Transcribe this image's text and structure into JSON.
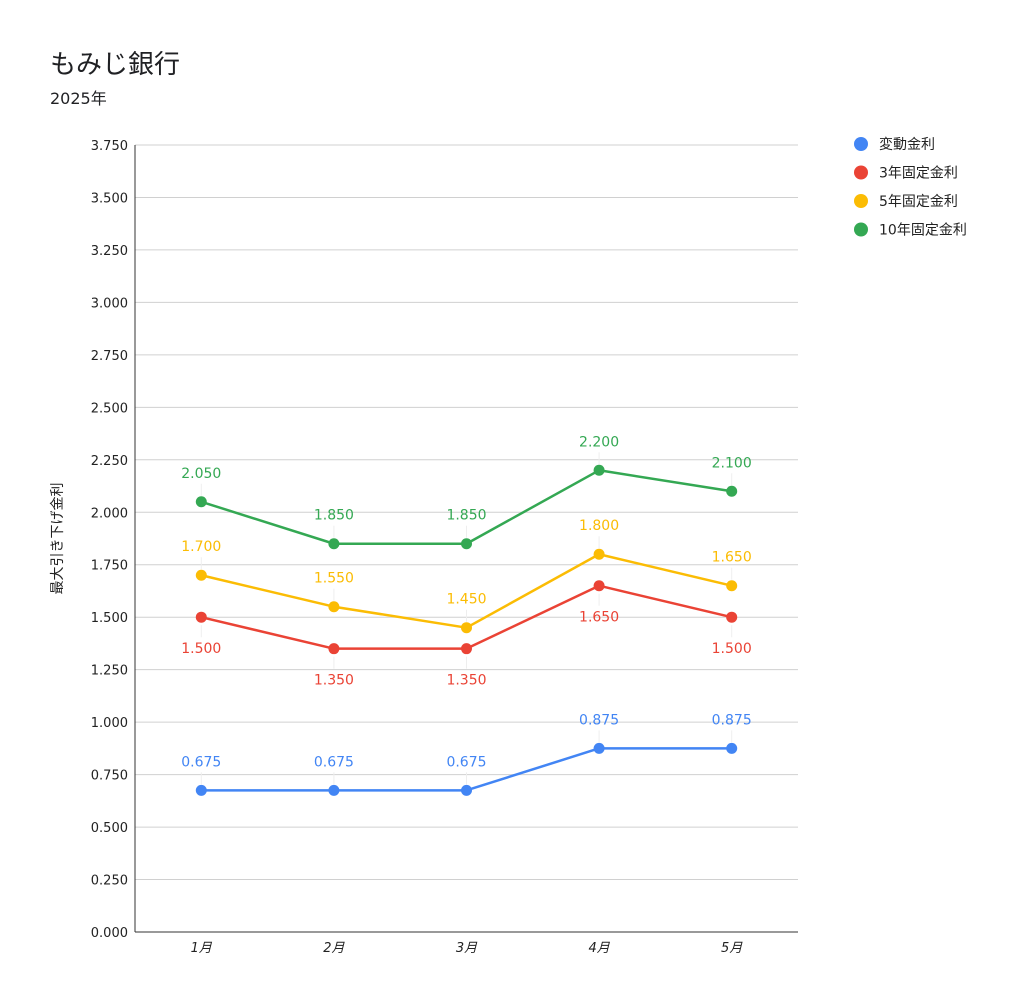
{
  "chart_data": {
    "type": "line",
    "title": "もみじ銀行",
    "subtitle": "2025年",
    "xlabel": "",
    "ylabel": "最大引き下げ金利",
    "categories": [
      "1月",
      "2月",
      "3月",
      "4月",
      "5月"
    ],
    "ylim": [
      0,
      3.75
    ],
    "yticks": [
      "0.000",
      "0.250",
      "0.500",
      "0.750",
      "1.000",
      "1.250",
      "1.500",
      "1.750",
      "2.000",
      "2.250",
      "2.500",
      "2.750",
      "3.000",
      "3.250",
      "3.500",
      "3.750"
    ],
    "grid": true,
    "legend_position": "right",
    "series": [
      {
        "name": "変動金利",
        "color": "#4285F4",
        "values": [
          0.675,
          0.675,
          0.675,
          0.875,
          0.875
        ],
        "labels": [
          "0.675",
          "0.675",
          "0.675",
          "0.875",
          "0.875"
        ],
        "label_side": [
          "above",
          "above",
          "above",
          "above",
          "above"
        ]
      },
      {
        "name": "3年固定金利",
        "color": "#EA4335",
        "values": [
          1.5,
          1.35,
          1.35,
          1.65,
          1.5
        ],
        "labels": [
          "1.500",
          "1.350",
          "1.350",
          "1.650",
          "1.500"
        ],
        "label_side": [
          "below",
          "below",
          "below",
          "below",
          "below"
        ]
      },
      {
        "name": "5年固定金利",
        "color": "#FBBC04",
        "values": [
          1.7,
          1.55,
          1.45,
          1.8,
          1.65
        ],
        "labels": [
          "1.700",
          "1.550",
          "1.450",
          "1.800",
          "1.650"
        ],
        "label_side": [
          "above",
          "above",
          "above",
          "above",
          "above"
        ]
      },
      {
        "name": "10年固定金利",
        "color": "#34A853",
        "values": [
          2.05,
          1.85,
          1.85,
          2.2,
          2.1
        ],
        "labels": [
          "2.050",
          "1.850",
          "1.850",
          "2.200",
          "2.100"
        ],
        "label_side": [
          "above",
          "above",
          "above",
          "above",
          "above"
        ]
      }
    ]
  }
}
